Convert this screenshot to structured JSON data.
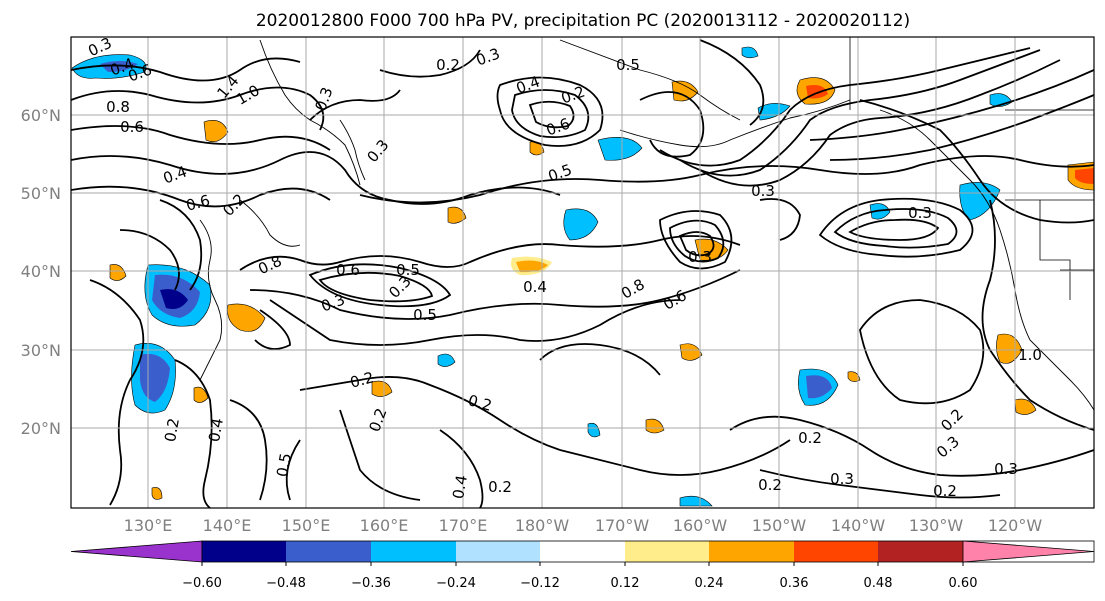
{
  "title": "2020012800 F000 700 hPa PV, precipitation PC (2020013112 - 2020020112)",
  "map": {
    "lat_labels": [
      "60°N",
      "50°N",
      "40°N",
      "30°N",
      "20°N"
    ],
    "lon_labels": [
      "130°E",
      "140°E",
      "150°E",
      "160°E",
      "170°E",
      "180°W",
      "170°W",
      "160°W",
      "150°W",
      "140°W",
      "130°W",
      "120°W"
    ],
    "contour_labels": [
      "0.3",
      "0.4",
      "0.6",
      "1.4",
      "1.0",
      "0.8",
      "0.6",
      "0.4",
      "0.6",
      "0.2",
      "0.3",
      "0.3",
      "0.2",
      "0.3",
      "0.4",
      "0.2",
      "0.6",
      "0.5",
      "0.5",
      "0.8",
      "0.3",
      "0.3",
      "0.8",
      "0.6",
      "0.3",
      "0.5",
      "0.3",
      "0.5",
      "0.4",
      "0.6",
      "0.3",
      "0.2",
      "0.2",
      "0.2",
      "0.2",
      "0.4",
      "0.5",
      "0.4",
      "0.2",
      "0.2",
      "0.3",
      "0.2",
      "0.2",
      "0.3",
      "1.0",
      "0.3",
      "0.2"
    ]
  },
  "colorbar": {
    "colors": [
      "#9a32cd",
      "#00008b",
      "#3a5fcd",
      "#00bfff",
      "#b0e2ff",
      "#ffffff",
      "#ffec8b",
      "#ffa500",
      "#ff4500",
      "#b22222",
      "#ff82ab"
    ],
    "tick_labels": [
      "−0.60",
      "−0.48",
      "−0.36",
      "−0.24",
      "−0.12",
      "0.12",
      "0.24",
      "0.36",
      "0.48",
      "0.60"
    ]
  }
}
